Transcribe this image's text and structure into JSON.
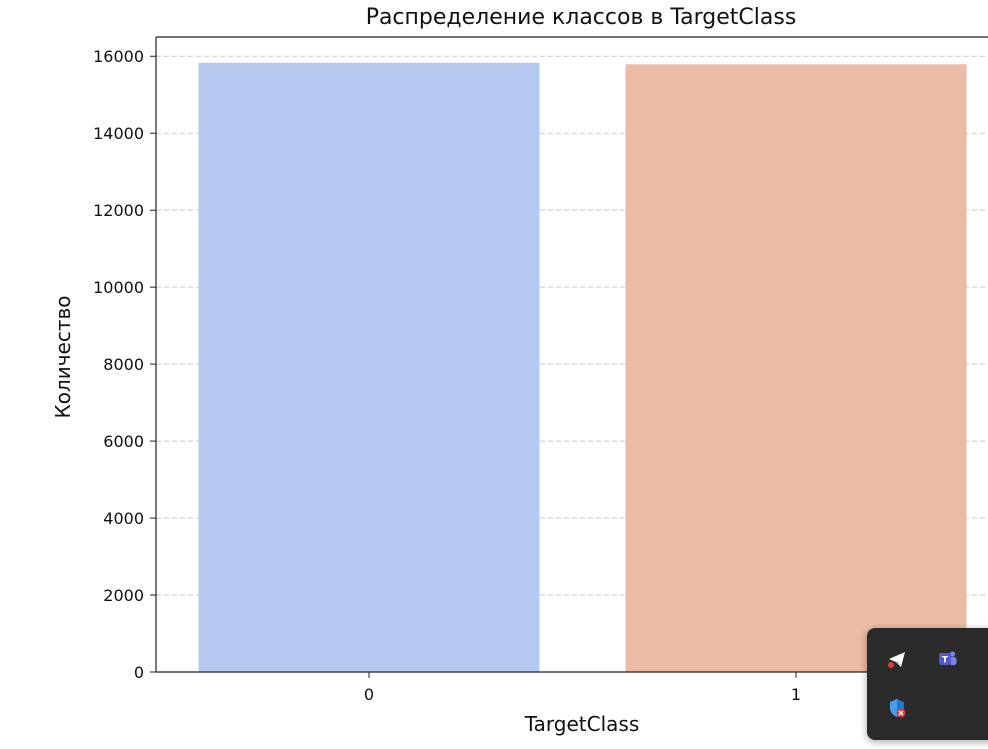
{
  "chart_data": {
    "type": "bar",
    "title": "Распределение классов в TargetClass",
    "xlabel": "TargetClass",
    "ylabel": "Количество",
    "categories": [
      "0",
      "1"
    ],
    "values": [
      15830,
      15790
    ],
    "bar_colors": [
      "#b5c9f1",
      "#ebbba5"
    ],
    "ylim": [
      0,
      16500
    ],
    "yticks": [
      0,
      2000,
      4000,
      6000,
      8000,
      10000,
      12000,
      14000,
      16000
    ],
    "grid": "y-dashed",
    "grid_color": "#c8c8c8"
  },
  "tray": {
    "icons": [
      {
        "name": "telegram-icon",
        "color": "#ffffff",
        "badge": "#e53935"
      },
      {
        "name": "teams-icon",
        "color": "#6c73d6"
      },
      {
        "name": "defender-icon",
        "color": "#1e78d6",
        "badge": "#e53935"
      }
    ]
  }
}
